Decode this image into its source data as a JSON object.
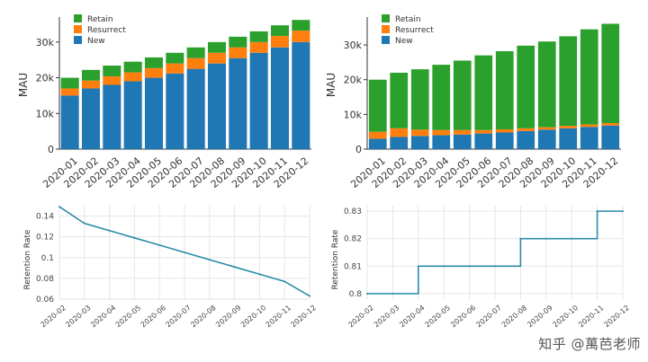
{
  "watermark": "知乎 @萬芭老师",
  "colors": {
    "retain": "#2ca02c",
    "resurrect": "#ff7f0e",
    "new": "#1f77b4",
    "line": "#2a8caa",
    "grid": "#e6e6e6"
  },
  "chart_data": [
    {
      "type": "bar",
      "stacked": true,
      "ylabel": "MAU",
      "ylim": [
        0,
        36000
      ],
      "yticks": [
        "0",
        "10k",
        "20k",
        "30k"
      ],
      "legend_position": "top-left",
      "categories": [
        "2020-01",
        "2020-02",
        "2020-03",
        "2020-04",
        "2020-05",
        "2020-06",
        "2020-07",
        "2020-08",
        "2020-09",
        "2020-10",
        "2020-11",
        "2020-12"
      ],
      "series": [
        {
          "name": "New",
          "values": [
            15000,
            17000,
            18000,
            19000,
            20000,
            21200,
            22500,
            24000,
            25500,
            27000,
            28500,
            30000
          ]
        },
        {
          "name": "Resurrect",
          "values": [
            2000,
            2200,
            2400,
            2500,
            2700,
            2800,
            3000,
            3000,
            3000,
            3000,
            3200,
            3200
          ]
        },
        {
          "name": "Retain",
          "values": [
            3000,
            3000,
            3000,
            3000,
            3000,
            3000,
            3000,
            3000,
            3000,
            3000,
            3000,
            3000
          ]
        }
      ]
    },
    {
      "type": "bar",
      "stacked": true,
      "ylabel": "MAU",
      "ylim": [
        0,
        37000
      ],
      "yticks": [
        "0",
        "10k",
        "20k",
        "30k"
      ],
      "legend_position": "top-left",
      "categories": [
        "2020-01",
        "2020-02",
        "2020-03",
        "2020-04",
        "2020-05",
        "2020-06",
        "2020-07",
        "2020-08",
        "2020-09",
        "2020-10",
        "2020-11",
        "2020-12"
      ],
      "series": [
        {
          "name": "New",
          "values": [
            3000,
            3500,
            3800,
            4000,
            4200,
            4500,
            4800,
            5200,
            5600,
            6000,
            6400,
            6800
          ]
        },
        {
          "name": "Resurrect",
          "values": [
            2000,
            2500,
            1800,
            1500,
            1300,
            1000,
            900,
            800,
            700,
            700,
            700,
            700
          ]
        },
        {
          "name": "Retain",
          "values": [
            15000,
            16000,
            17400,
            18800,
            20000,
            21500,
            22500,
            23800,
            24700,
            25800,
            27400,
            28600
          ]
        }
      ]
    },
    {
      "type": "line",
      "ylabel": "Retention Rate",
      "ylim": [
        0.06,
        0.15
      ],
      "yticks": [
        0.06,
        0.08,
        0.1,
        0.12,
        0.14
      ],
      "ytick_labels": [
        "0.06",
        "0.08",
        "0.1",
        "0.12",
        "0.14"
      ],
      "categories": [
        "2020-02",
        "2020-03",
        "2020-04",
        "2020-05",
        "2020-06",
        "2020-07",
        "2020-08",
        "2020-09",
        "2020-10",
        "2020-11",
        "2020-12"
      ],
      "values": [
        0.149,
        0.133,
        0.126,
        0.119,
        0.112,
        0.105,
        0.098,
        0.091,
        0.084,
        0.077,
        0.063
      ]
    },
    {
      "type": "line",
      "ylabel": "Retention Rate",
      "ylim": [
        0.798,
        0.832
      ],
      "yticks": [
        0.8,
        0.81,
        0.82,
        0.83
      ],
      "ytick_labels": [
        "0.8",
        "0.81",
        "0.82",
        "0.83"
      ],
      "step": true,
      "categories": [
        "2020-02",
        "2020-03",
        "2020-04",
        "2020-05",
        "2020-06",
        "2020-07",
        "2020-08",
        "2020-09",
        "2020-10",
        "2020-11",
        "2020-12"
      ],
      "values": [
        0.8,
        0.8,
        0.81,
        0.81,
        0.81,
        0.81,
        0.82,
        0.82,
        0.82,
        0.83,
        0.83
      ]
    }
  ]
}
